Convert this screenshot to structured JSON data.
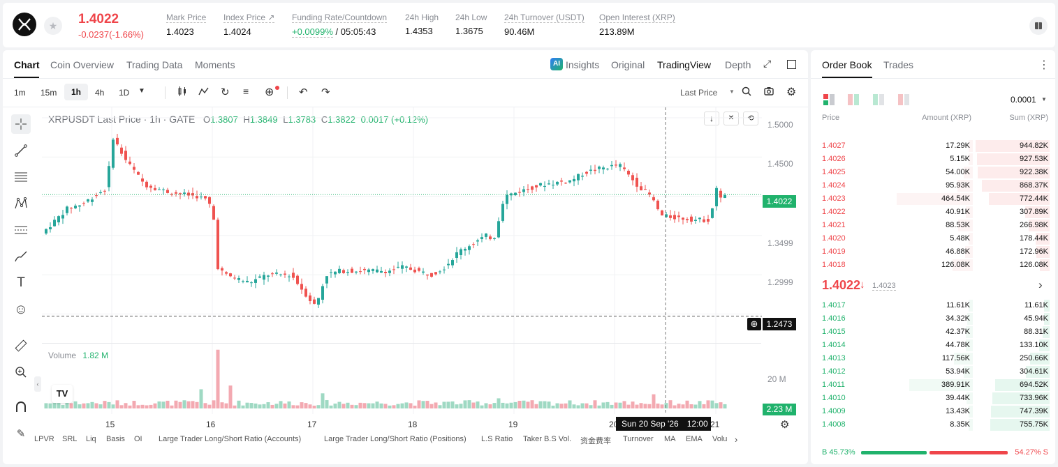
{
  "header": {
    "price": "1.4022",
    "change": "-0.0237(-1.66%)",
    "stats": [
      {
        "label": "Mark Price",
        "value": "1.4023"
      },
      {
        "label": "Index Price ↗",
        "value": "1.4024"
      },
      {
        "label": "Funding Rate/Countdown",
        "value": "+0.0099%",
        "value2": "/ 05:05:43"
      },
      {
        "label": "24h High",
        "value": "1.4353"
      },
      {
        "label": "24h Low",
        "value": "1.3675"
      },
      {
        "label": "24h Turnover (USDT)",
        "value": "90.46M"
      },
      {
        "label": "Open Interest (XRP)",
        "value": "213.89M"
      }
    ]
  },
  "chart_panel": {
    "tabs": [
      "Chart",
      "Coin Overview",
      "Trading Data",
      "Moments"
    ],
    "view_tabs": {
      "insights": "Insights",
      "original": "Original",
      "tradingview": "TradingView",
      "depth": "Depth"
    },
    "intervals": [
      "1m",
      "15m",
      "1h",
      "4h",
      "1D"
    ],
    "price_type": "Last Price",
    "legend": {
      "symbol": "XRPUSDT Last Price · 1h · GATE",
      "o_l": "O",
      "o": "1.3807",
      "h_l": "H",
      "h": "1.3849",
      "l_l": "L",
      "l": "1.3783",
      "c_l": "C",
      "c": "1.3822",
      "chg": "0.0017 (+0.12%)"
    },
    "price_axis": [
      "1.5000",
      "1.4500",
      "1.3499",
      "1.2999"
    ],
    "last_price_tag": "1.4022",
    "crosshair_price": "1.2473",
    "crosshair_time": "Sun 20 Sep '26",
    "crosshair_hour": "12:00",
    "volume": {
      "label": "Volume",
      "value": "1.82 M",
      "axis": "20 M",
      "tag": "2.23 M"
    },
    "date_labels": [
      "15",
      "16",
      "17",
      "18",
      "19",
      "20",
      "21"
    ],
    "indicators": [
      "LPVR",
      "SRL",
      "Liq",
      "Basis",
      "OI",
      "Large Trader Long/Short Ratio (Accounts)",
      "Large Trader Long/Short Ratio (Positions)",
      "L.S Ratio",
      "Taker B.S Vol.",
      "资金费率",
      "Turnover",
      "MA",
      "EMA",
      "Volu"
    ]
  },
  "order_book": {
    "tabs": [
      "Order Book",
      "Trades"
    ],
    "precision": "0.0001",
    "columns": [
      "Price",
      "Amount (XRP)",
      "Sum (XRP)"
    ],
    "asks": [
      [
        "1.4027",
        "17.29K",
        "944.82K"
      ],
      [
        "1.4026",
        "5.15K",
        "927.53K"
      ],
      [
        "1.4025",
        "54.00K",
        "922.38K"
      ],
      [
        "1.4024",
        "95.93K",
        "868.37K"
      ],
      [
        "1.4023",
        "464.54K",
        "772.44K"
      ],
      [
        "1.4022",
        "40.91K",
        "307.89K"
      ],
      [
        "1.4021",
        "88.53K",
        "266.98K"
      ],
      [
        "1.4020",
        "5.48K",
        "178.44K"
      ],
      [
        "1.4019",
        "46.88K",
        "172.96K"
      ],
      [
        "1.4018",
        "126.08K",
        "126.08K"
      ]
    ],
    "mid_price": "1.4022",
    "mid_mark": "1.4023",
    "bids": [
      [
        "1.4017",
        "11.61K",
        "11.61K"
      ],
      [
        "1.4016",
        "34.32K",
        "45.94K"
      ],
      [
        "1.4015",
        "42.37K",
        "88.31K"
      ],
      [
        "1.4014",
        "44.78K",
        "133.10K"
      ],
      [
        "1.4013",
        "117.56K",
        "250.66K"
      ],
      [
        "1.4012",
        "53.94K",
        "304.61K"
      ],
      [
        "1.4011",
        "389.91K",
        "694.52K"
      ],
      [
        "1.4010",
        "39.44K",
        "733.96K"
      ],
      [
        "1.4009",
        "13.43K",
        "747.39K"
      ],
      [
        "1.4008",
        "8.35K",
        "755.75K"
      ]
    ],
    "ratio_b": "B 45.73%",
    "ratio_s": "54.27% S"
  }
}
